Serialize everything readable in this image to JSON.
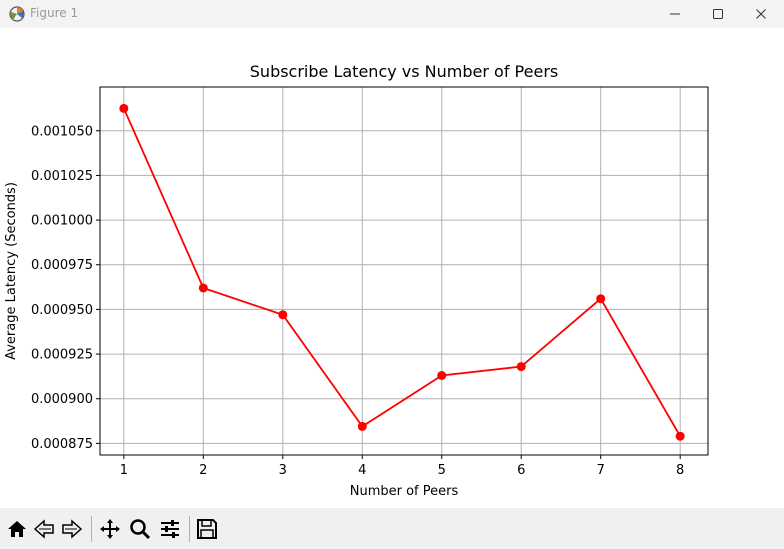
{
  "window": {
    "title": "Figure 1",
    "controls": [
      "minimize",
      "maximize",
      "close"
    ]
  },
  "toolbar": {
    "buttons": [
      {
        "name": "home-icon",
        "tooltip": "Home"
      },
      {
        "name": "back-icon",
        "tooltip": "Back"
      },
      {
        "name": "forward-icon",
        "tooltip": "Forward"
      },
      {
        "name": "pan-icon",
        "tooltip": "Pan"
      },
      {
        "name": "zoom-icon",
        "tooltip": "Zoom"
      },
      {
        "name": "configure-subplots-icon",
        "tooltip": "Subplots"
      },
      {
        "name": "save-icon",
        "tooltip": "Save"
      }
    ]
  },
  "chart_data": {
    "type": "line",
    "title": "Subscribe Latency vs Number of Peers",
    "xlabel": "Number of Peers",
    "ylabel": "Average Latency (Seconds)",
    "x": [
      1,
      2,
      3,
      4,
      5,
      6,
      7,
      8
    ],
    "series": [
      {
        "values": [
          0.0010625,
          0.000962,
          0.000947,
          0.0008845,
          0.000913,
          0.000918,
          0.000956,
          0.000879
        ],
        "color": "#ff0000",
        "marker": "circle"
      }
    ],
    "xticks": [
      "1",
      "2",
      "3",
      "4",
      "5",
      "6",
      "7",
      "8"
    ],
    "yticks": [
      0.000875,
      0.0009,
      0.000925,
      0.00095,
      0.000975,
      0.001,
      0.001025,
      0.00105
    ],
    "ytick_labels": [
      "0.000875",
      "0.000900",
      "0.000925",
      "0.000950",
      "0.000975",
      "0.001000",
      "0.001025",
      "0.001050"
    ],
    "xlim": [
      0.7,
      8.35
    ],
    "ylim": [
      0.0008685,
      0.0010745
    ],
    "grid": true,
    "line_color": "#ff0000",
    "grid_color": "#b0b0b0"
  }
}
